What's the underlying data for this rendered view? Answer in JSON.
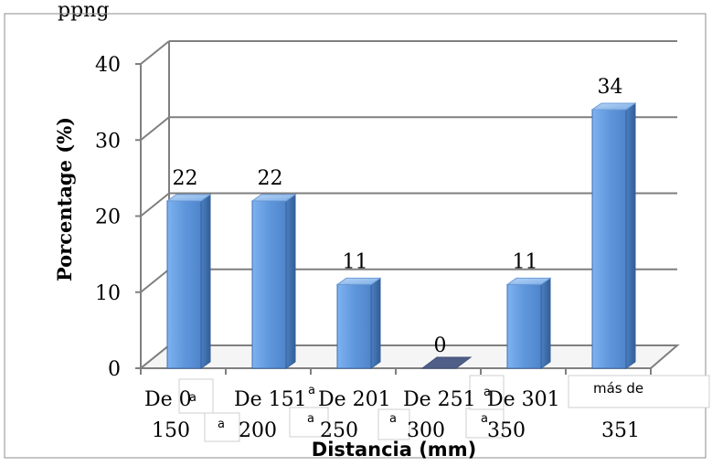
{
  "top_text": "ppng",
  "chart_data": {
    "type": "bar",
    "categories": [
      {
        "line1": "De 0",
        "line2": "150"
      },
      {
        "line1": "De 151",
        "line2": "200"
      },
      {
        "line1": "De 201",
        "line2": "250"
      },
      {
        "line1": "De 251",
        "line2": "300"
      },
      {
        "line1": "De 301",
        "line2": "350"
      },
      {
        "line1": "más de",
        "line2": "351"
      }
    ],
    "connector_marks": [
      "a",
      "a",
      "a",
      "a",
      "a",
      "a",
      "a"
    ],
    "values": [
      22,
      22,
      11,
      0,
      11,
      34
    ],
    "data_labels": [
      "22",
      "22",
      "11",
      "0",
      "11",
      "34"
    ],
    "y_ticks": [
      "0",
      "10",
      "20",
      "30",
      "40"
    ],
    "ylim": [
      0,
      40
    ],
    "ylabel": "Porcentage (%)",
    "xlabel": "Distancia (mm)",
    "grid": true,
    "legend": "none",
    "colors": {
      "bar_front": "#5f97dd",
      "bar_side": "#3f6fb0",
      "bar_top": "#8db7eb",
      "zero_bar": "#4f5f87",
      "gridline": "#7f7f7f",
      "axis": "#7f7f7f",
      "frame": "#8d8d8d"
    }
  }
}
